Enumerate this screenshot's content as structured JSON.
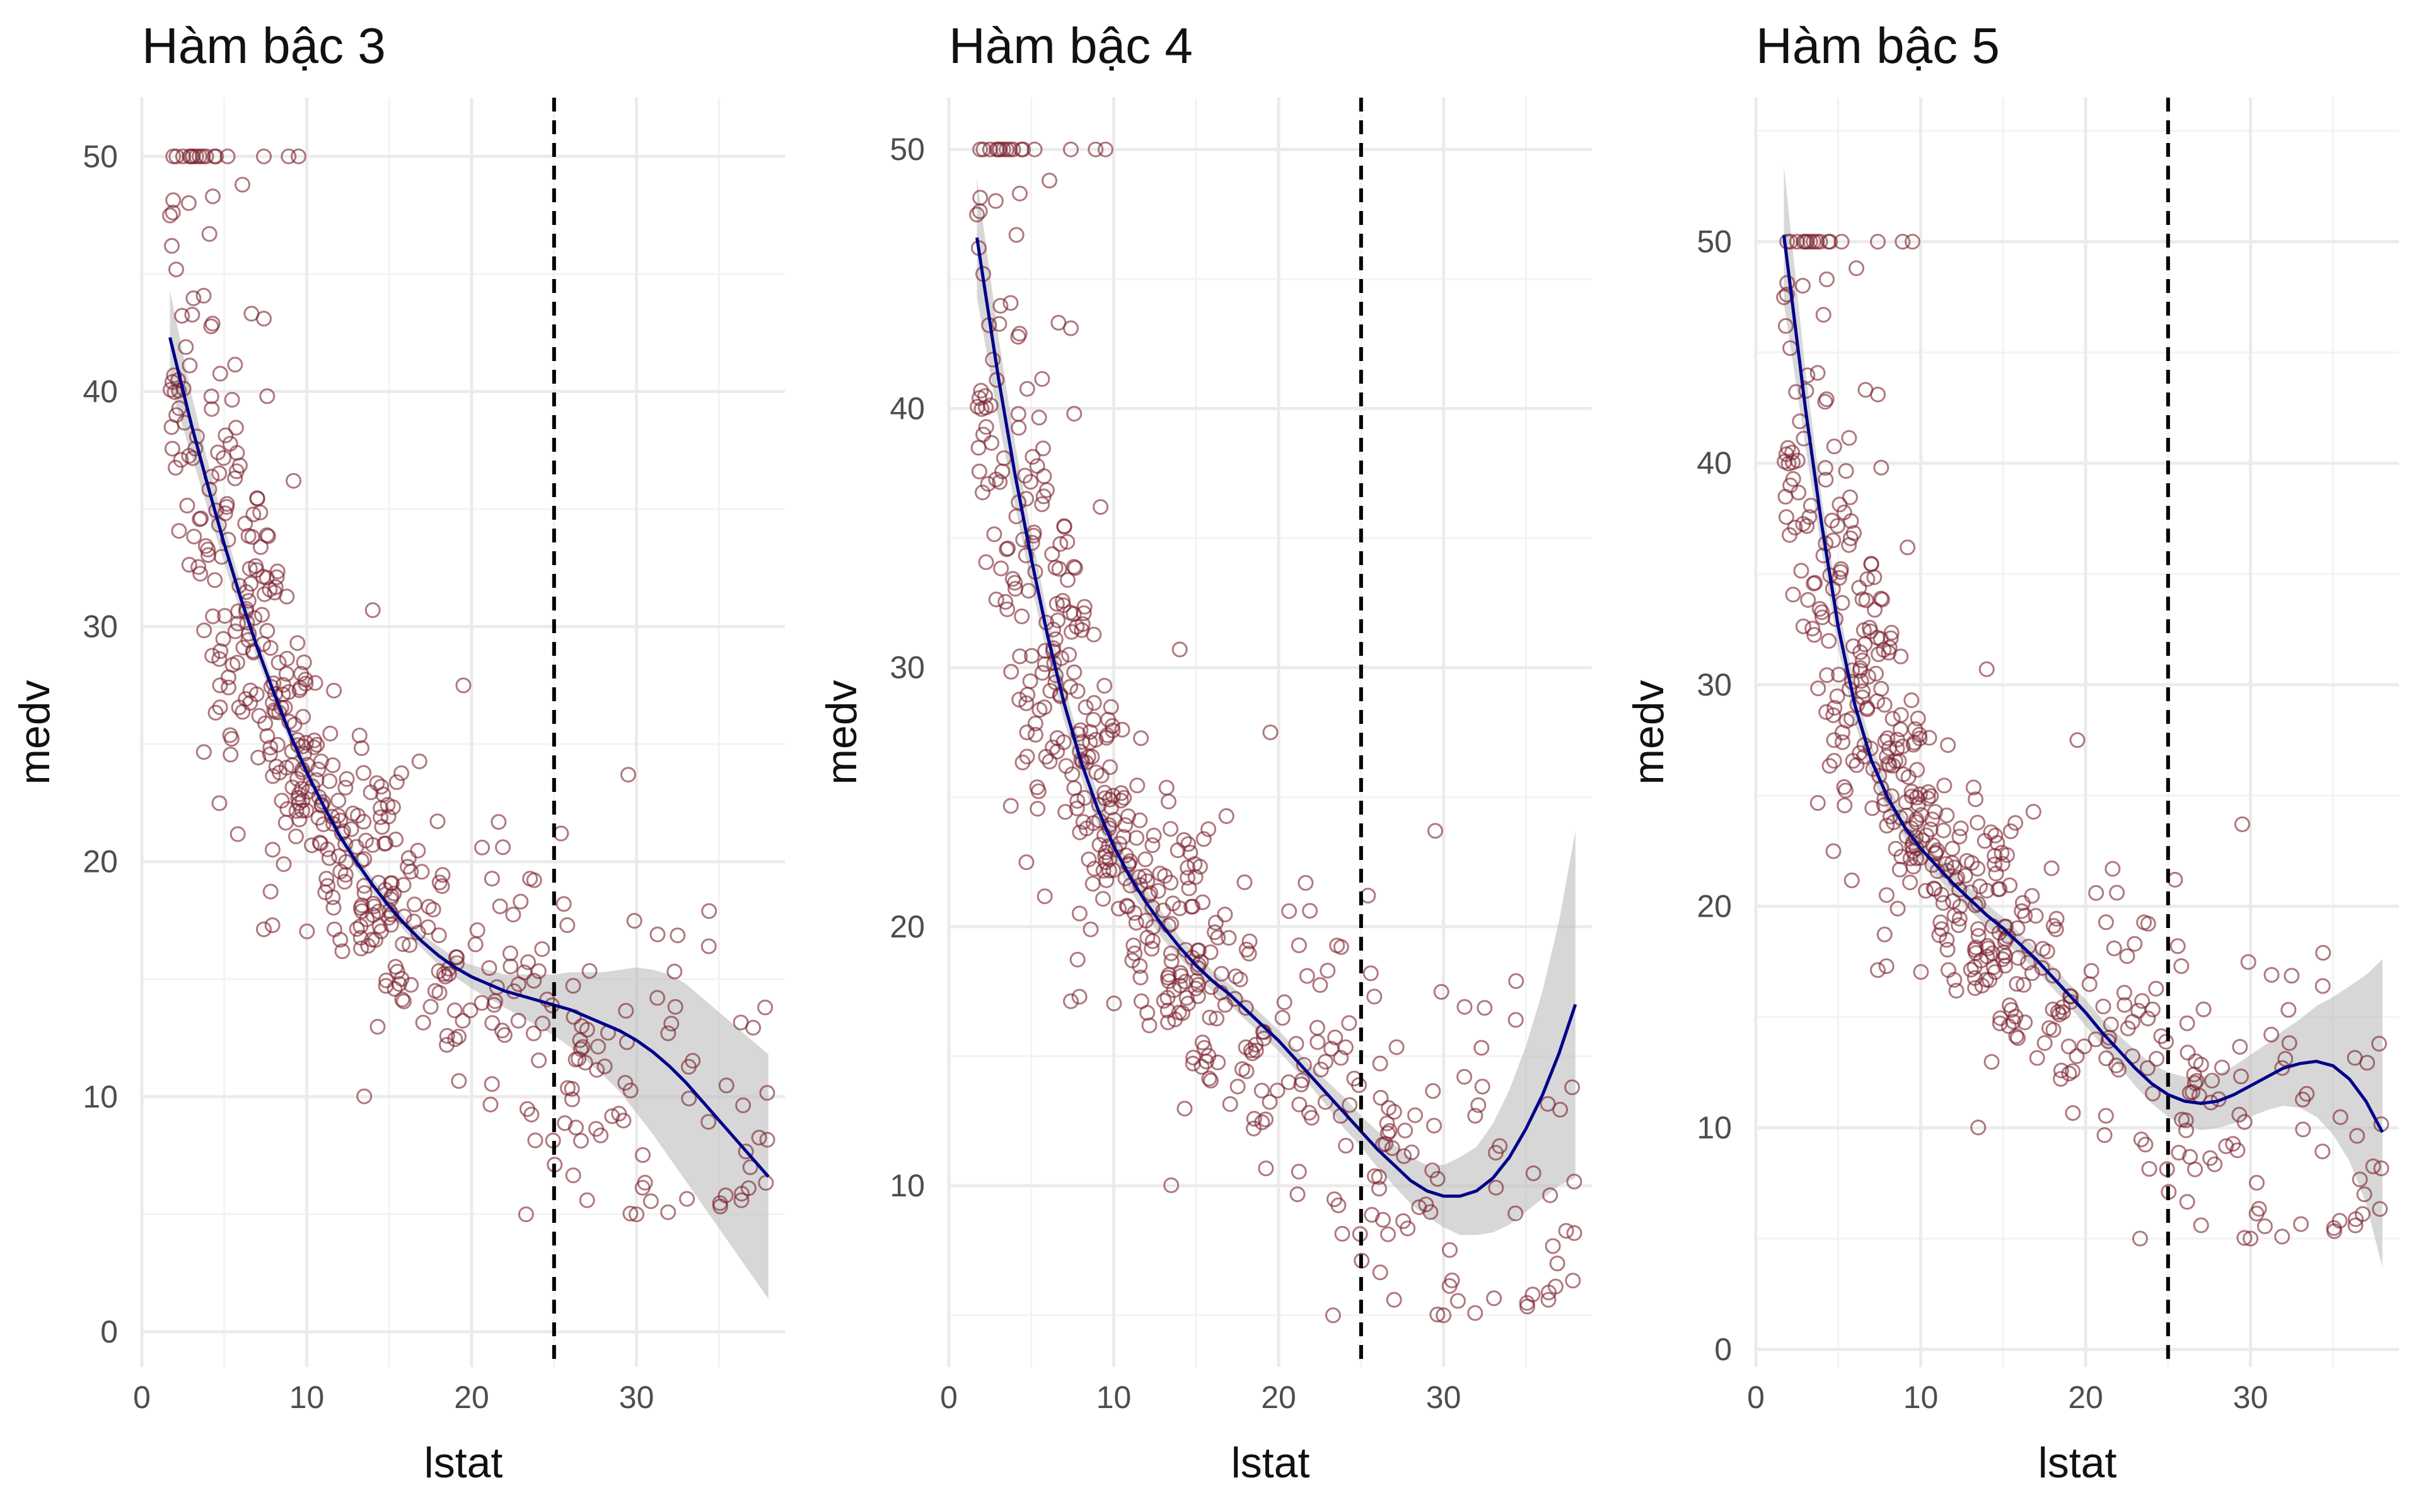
{
  "figure": {
    "point_color": "#7a1f2b",
    "line_color": "#00008b",
    "band_color": "#bdbdbd"
  },
  "chart_data": [
    {
      "type": "scatter",
      "title": "Hàm bậc 3",
      "xlabel": "lstat",
      "ylabel": "medv",
      "xlim": [
        0,
        39
      ],
      "ylim": [
        -1.5,
        52.5
      ],
      "xticks": [
        0,
        10,
        20,
        30
      ],
      "yticks": [
        0,
        10,
        20,
        30,
        40,
        50
      ],
      "vline_x": 25,
      "grid": true,
      "fit": {
        "x": [
          1.7,
          3,
          4,
          5,
          6,
          7,
          8,
          9,
          10,
          11,
          12,
          13,
          14,
          15,
          16,
          17,
          18,
          19,
          20,
          21,
          22,
          23,
          24,
          25,
          26,
          27,
          28,
          29,
          30,
          31,
          32,
          33,
          34,
          35,
          36,
          37,
          38
        ],
        "y": [
          42.3,
          38.6,
          36.0,
          33.5,
          31.2,
          29.1,
          27.2,
          25.4,
          23.8,
          22.4,
          21.1,
          20.0,
          19.0,
          18.1,
          17.3,
          16.6,
          16.0,
          15.5,
          15.1,
          14.8,
          14.5,
          14.3,
          14.1,
          13.9,
          13.7,
          13.4,
          13.1,
          12.8,
          12.4,
          11.9,
          11.3,
          10.6,
          9.8,
          9.0,
          8.2,
          7.4,
          6.6
        ],
        "lower": [
          40.3,
          37.3,
          35.0,
          32.7,
          30.6,
          28.6,
          26.8,
          25.0,
          23.4,
          22.0,
          20.8,
          19.7,
          18.7,
          17.8,
          17.0,
          16.3,
          15.6,
          15.1,
          14.6,
          14.2,
          13.8,
          13.4,
          13.0,
          12.6,
          12.1,
          11.5,
          10.9,
          10.2,
          9.3,
          8.4,
          7.4,
          6.4,
          5.4,
          4.4,
          3.4,
          2.4,
          1.4
        ],
        "upper": [
          44.3,
          39.9,
          37.0,
          34.3,
          31.8,
          29.6,
          27.6,
          25.8,
          24.2,
          22.8,
          21.4,
          20.3,
          19.3,
          18.4,
          17.6,
          16.9,
          16.4,
          15.9,
          15.6,
          15.4,
          15.2,
          15.2,
          15.2,
          15.2,
          15.3,
          15.3,
          15.3,
          15.4,
          15.5,
          15.4,
          15.2,
          14.8,
          14.2,
          13.6,
          13.0,
          12.4,
          11.8
        ]
      }
    },
    {
      "type": "scatter",
      "title": "Hàm bậc 4",
      "xlabel": "lstat",
      "ylabel": "medv",
      "xlim": [
        0,
        39
      ],
      "ylim": [
        3,
        52
      ],
      "xticks": [
        0,
        10,
        20,
        30
      ],
      "yticks": [
        10,
        20,
        30,
        40,
        50
      ],
      "vline_x": 25,
      "grid": true,
      "fit": {
        "x": [
          1.7,
          3,
          4,
          5,
          6,
          7,
          8,
          9,
          10,
          11,
          12,
          13,
          14,
          15,
          16,
          17,
          18,
          19,
          20,
          21,
          22,
          23,
          24,
          25,
          26,
          27,
          28,
          29,
          30,
          31,
          32,
          33,
          34,
          35,
          36,
          37,
          38
        ],
        "y": [
          46.6,
          41.2,
          37.5,
          34.2,
          31.2,
          28.6,
          26.4,
          24.6,
          23.1,
          21.9,
          20.9,
          20.0,
          19.2,
          18.5,
          17.9,
          17.4,
          16.8,
          16.2,
          15.6,
          14.9,
          14.2,
          13.5,
          12.8,
          12.1,
          11.4,
          10.8,
          10.2,
          9.8,
          9.6,
          9.6,
          9.8,
          10.3,
          11.1,
          12.2,
          13.5,
          15.1,
          17.0
        ],
        "lower": [
          44.3,
          39.6,
          36.3,
          33.2,
          30.4,
          27.9,
          25.8,
          24.0,
          22.6,
          21.4,
          20.4,
          19.5,
          18.8,
          18.1,
          17.5,
          17.0,
          16.4,
          15.8,
          15.2,
          14.5,
          13.8,
          13.0,
          12.2,
          11.5,
          10.7,
          10.0,
          9.3,
          8.8,
          8.4,
          8.1,
          8.1,
          8.2,
          8.5,
          9.0,
          9.5,
          10.0,
          10.3
        ],
        "upper": [
          48.9,
          42.8,
          38.7,
          35.2,
          32.0,
          29.3,
          27.0,
          25.2,
          23.6,
          22.4,
          21.4,
          20.5,
          19.6,
          18.9,
          18.3,
          17.8,
          17.2,
          16.6,
          16.0,
          15.3,
          14.6,
          14.0,
          13.4,
          12.7,
          12.1,
          11.6,
          11.1,
          10.8,
          10.8,
          11.1,
          11.5,
          12.4,
          13.7,
          15.4,
          17.5,
          20.2,
          23.7
        ]
      }
    },
    {
      "type": "scatter",
      "title": "Hàm bậc 5",
      "xlabel": "lstat",
      "ylabel": "medv",
      "xlim": [
        0,
        39
      ],
      "ylim": [
        -0.8,
        56.5
      ],
      "xticks": [
        0,
        10,
        20,
        30
      ],
      "yticks": [
        0,
        10,
        20,
        30,
        40,
        50
      ],
      "vline_x": 25,
      "grid": true,
      "fit": {
        "x": [
          1.7,
          3,
          4,
          5,
          6,
          7,
          8,
          9,
          10,
          11,
          12,
          13,
          14,
          15,
          16,
          17,
          18,
          19,
          20,
          21,
          22,
          23,
          24,
          25,
          26,
          27,
          28,
          29,
          30,
          31,
          32,
          33,
          34,
          35,
          36,
          37,
          38
        ],
        "y": [
          50.3,
          42.5,
          37.2,
          32.6,
          29.1,
          26.6,
          24.9,
          23.6,
          22.6,
          21.8,
          21.0,
          20.3,
          19.6,
          19.0,
          18.3,
          17.6,
          16.8,
          16.0,
          15.2,
          14.3,
          13.5,
          12.7,
          12.0,
          11.5,
          11.2,
          11.1,
          11.2,
          11.5,
          11.9,
          12.3,
          12.7,
          12.9,
          13.0,
          12.8,
          12.2,
          11.2,
          9.8
        ],
        "lower": [
          47.2,
          40.8,
          36.0,
          31.6,
          28.3,
          25.9,
          24.3,
          23.1,
          22.1,
          21.3,
          20.5,
          19.8,
          19.1,
          18.5,
          17.8,
          17.1,
          16.3,
          15.5,
          14.6,
          13.7,
          12.8,
          11.9,
          11.1,
          10.5,
          10.1,
          9.9,
          10.0,
          10.2,
          10.5,
          10.8,
          11.0,
          10.9,
          10.5,
          9.7,
          8.5,
          6.6,
          3.7
        ],
        "upper": [
          53.4,
          44.2,
          38.4,
          33.6,
          29.9,
          27.3,
          25.5,
          24.1,
          23.1,
          22.3,
          21.5,
          20.8,
          20.1,
          19.5,
          18.8,
          18.1,
          17.3,
          16.5,
          15.8,
          14.9,
          14.2,
          13.5,
          12.9,
          12.5,
          12.3,
          12.3,
          12.4,
          12.8,
          13.3,
          13.8,
          14.4,
          14.9,
          15.5,
          15.9,
          16.4,
          16.9,
          17.6
        ]
      }
    }
  ]
}
